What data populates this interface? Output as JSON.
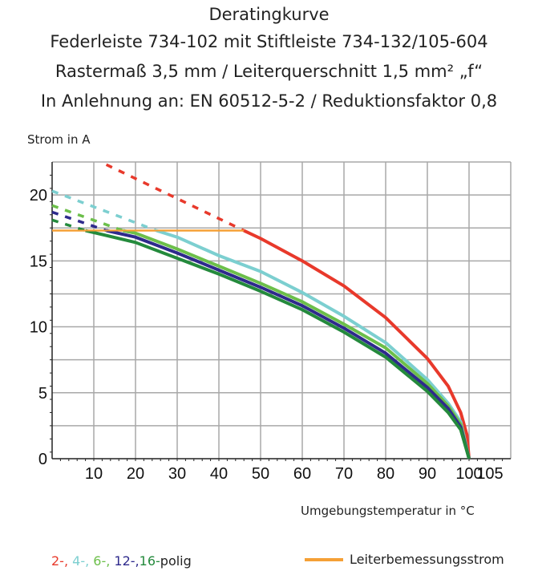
{
  "chart_data": {
    "type": "line",
    "title": "Deratingkurve",
    "subtitle_lines": [
      "Federleiste 734-102 mit Stiftleiste 734-132/105-604",
      "Rastermaß 3,5 mm / Leiterquerschnitt 1,5 mm² „f“",
      "In Anlehnung an: EN 60512-5-2 / Reduktionsfaktor 0,8"
    ],
    "xlabel": "Umgebungstemperatur in °C",
    "ylabel": "Strom in A",
    "xlim": [
      0,
      110
    ],
    "ylim": [
      0,
      22.5
    ],
    "xticks": [
      10,
      20,
      30,
      40,
      50,
      60,
      70,
      80,
      90,
      100,
      105
    ],
    "yticks": [
      0,
      5,
      10,
      15,
      20
    ],
    "grid": true,
    "series": [
      {
        "key": "2",
        "color": "#e8392b",
        "dashed": [
          [
            13,
            22.3
          ],
          [
            46,
            17.3
          ]
        ],
        "solid": [
          [
            46,
            17.3
          ],
          [
            50,
            16.7
          ],
          [
            60,
            15.0
          ],
          [
            70,
            13.1
          ],
          [
            80,
            10.7
          ],
          [
            90,
            7.6
          ],
          [
            95,
            5.5
          ],
          [
            98,
            3.5
          ],
          [
            99.5,
            1.8
          ],
          [
            100,
            0
          ]
        ]
      },
      {
        "key": "4",
        "color": "#7ccfd0",
        "dashed": [
          [
            0,
            20.3
          ],
          [
            25,
            17.3
          ]
        ],
        "solid": [
          [
            25,
            17.3
          ],
          [
            30,
            16.8
          ],
          [
            40,
            15.4
          ],
          [
            50,
            14.2
          ],
          [
            60,
            12.6
          ],
          [
            70,
            10.8
          ],
          [
            80,
            8.8
          ],
          [
            90,
            6.0
          ],
          [
            95,
            4.2
          ],
          [
            98,
            2.8
          ],
          [
            100,
            0
          ]
        ]
      },
      {
        "key": "6",
        "color": "#6cbf4a",
        "dashed": [
          [
            0,
            19.2
          ],
          [
            17,
            17.3
          ]
        ],
        "solid": [
          [
            17,
            17.3
          ],
          [
            20,
            17.1
          ],
          [
            30,
            15.9
          ],
          [
            40,
            14.6
          ],
          [
            50,
            13.3
          ],
          [
            60,
            11.9
          ],
          [
            70,
            10.2
          ],
          [
            80,
            8.4
          ],
          [
            90,
            5.7
          ],
          [
            95,
            4.0
          ],
          [
            98,
            2.6
          ],
          [
            100,
            0
          ]
        ]
      },
      {
        "key": "12",
        "color": "#2e2a8c",
        "dashed": [
          [
            0,
            18.7
          ],
          [
            13,
            17.3
          ]
        ],
        "solid": [
          [
            13,
            17.3
          ],
          [
            20,
            16.8
          ],
          [
            30,
            15.6
          ],
          [
            40,
            14.3
          ],
          [
            50,
            13.0
          ],
          [
            60,
            11.6
          ],
          [
            70,
            9.9
          ],
          [
            80,
            8.0
          ],
          [
            90,
            5.4
          ],
          [
            95,
            3.8
          ],
          [
            98,
            2.4
          ],
          [
            100,
            0
          ]
        ]
      },
      {
        "key": "16",
        "color": "#248a3c",
        "dashed": [
          [
            0,
            18.1
          ],
          [
            8,
            17.3
          ]
        ],
        "solid": [
          [
            8,
            17.3
          ],
          [
            20,
            16.4
          ],
          [
            30,
            15.2
          ],
          [
            40,
            14.0
          ],
          [
            50,
            12.7
          ],
          [
            60,
            11.3
          ],
          [
            70,
            9.6
          ],
          [
            80,
            7.7
          ],
          [
            90,
            5.1
          ],
          [
            95,
            3.5
          ],
          [
            98,
            2.2
          ],
          [
            100,
            0
          ]
        ]
      }
    ],
    "rated_current": {
      "name": "Leiterbemessungsstrom",
      "color": "#f5a036",
      "value": 17.3,
      "x_range": [
        0,
        46
      ]
    },
    "legend": {
      "pole_labels": [
        "2-,",
        "4-,",
        "6-,",
        "12-,",
        "16-"
      ],
      "pole_suffix": "polig",
      "rated_label": "Leiterbemessungsstrom"
    }
  }
}
